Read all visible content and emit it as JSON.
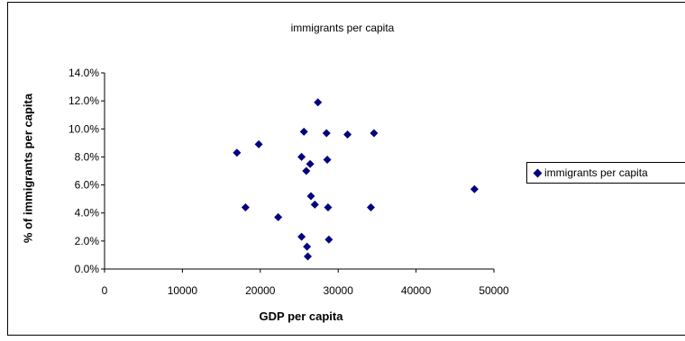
{
  "chart_data": {
    "type": "scatter",
    "title": "immigrants per capita",
    "xlabel": "GDP per capita",
    "ylabel": "% of immigrants per capita",
    "xlim": [
      0,
      50000
    ],
    "ylim": [
      0.0,
      0.14
    ],
    "x_ticks": [
      "0",
      "10000",
      "20000",
      "30000",
      "40000",
      "50000"
    ],
    "y_ticks": [
      "0.0%",
      "2.0%",
      "4.0%",
      "6.0%",
      "8.0%",
      "10.0%",
      "12.0%",
      "14.0%"
    ],
    "grid": false,
    "legend_position": "right",
    "marker": "diamond",
    "colors": {
      "series": "#000080",
      "axes": "#000000",
      "frame": "#000000"
    },
    "series": [
      {
        "name": "immigrants per capita",
        "points": [
          {
            "x": 27400,
            "y": 0.119
          },
          {
            "x": 25600,
            "y": 0.098
          },
          {
            "x": 28500,
            "y": 0.097
          },
          {
            "x": 31200,
            "y": 0.096
          },
          {
            "x": 34600,
            "y": 0.097
          },
          {
            "x": 19800,
            "y": 0.089
          },
          {
            "x": 17000,
            "y": 0.083
          },
          {
            "x": 25300,
            "y": 0.08
          },
          {
            "x": 28600,
            "y": 0.078
          },
          {
            "x": 26400,
            "y": 0.075
          },
          {
            "x": 25900,
            "y": 0.07
          },
          {
            "x": 47500,
            "y": 0.057
          },
          {
            "x": 26500,
            "y": 0.052
          },
          {
            "x": 27000,
            "y": 0.046
          },
          {
            "x": 18100,
            "y": 0.044
          },
          {
            "x": 28700,
            "y": 0.044
          },
          {
            "x": 34200,
            "y": 0.044
          },
          {
            "x": 22300,
            "y": 0.037
          },
          {
            "x": 25300,
            "y": 0.023
          },
          {
            "x": 28800,
            "y": 0.021
          },
          {
            "x": 26000,
            "y": 0.016
          },
          {
            "x": 26100,
            "y": 0.009
          }
        ]
      }
    ]
  }
}
